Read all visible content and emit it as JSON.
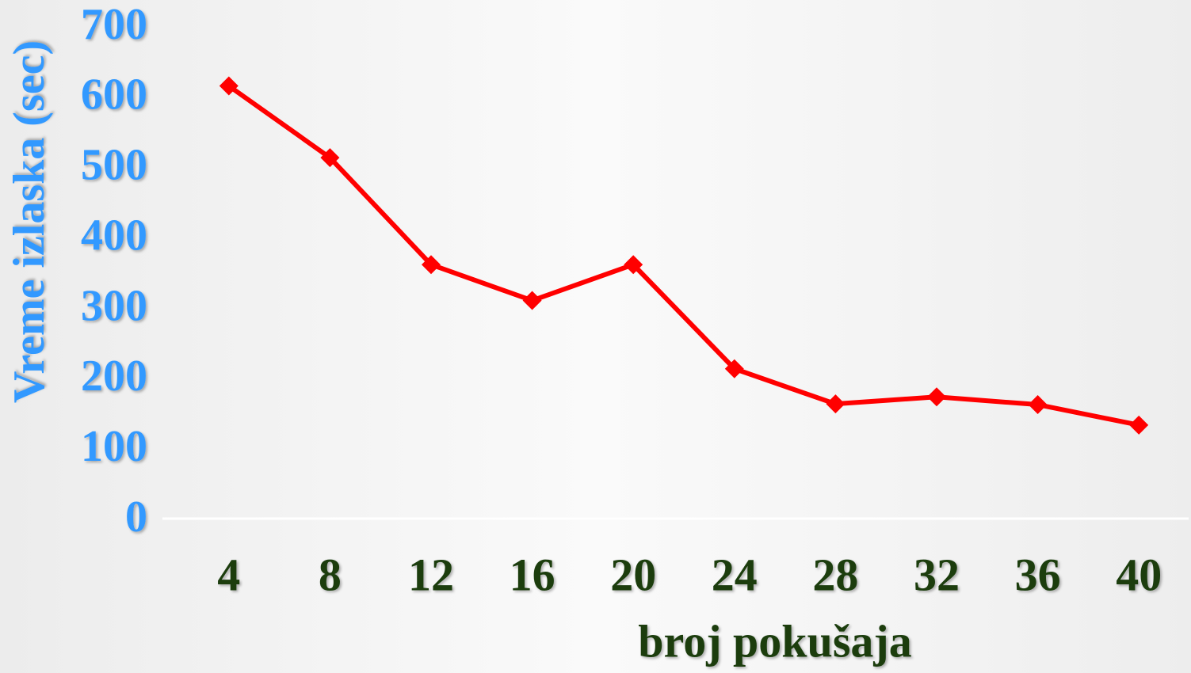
{
  "chart_data": {
    "type": "line",
    "categories": [
      "4",
      "8",
      "12",
      "16",
      "20",
      "24",
      "28",
      "32",
      "36",
      "40"
    ],
    "series": [
      {
        "name": "Vreme izlaska",
        "color": "#ff0000",
        "values": [
          615,
          513,
          361,
          310,
          361,
          213,
          163,
          173,
          162,
          133
        ]
      }
    ],
    "ylim": [
      0,
      700
    ],
    "yticks": [
      0,
      100,
      200,
      300,
      400,
      500,
      600,
      700
    ],
    "ylabel": "Vreme izlaska (sec)",
    "xlabel": "broj pokušaja",
    "grid": false
  }
}
